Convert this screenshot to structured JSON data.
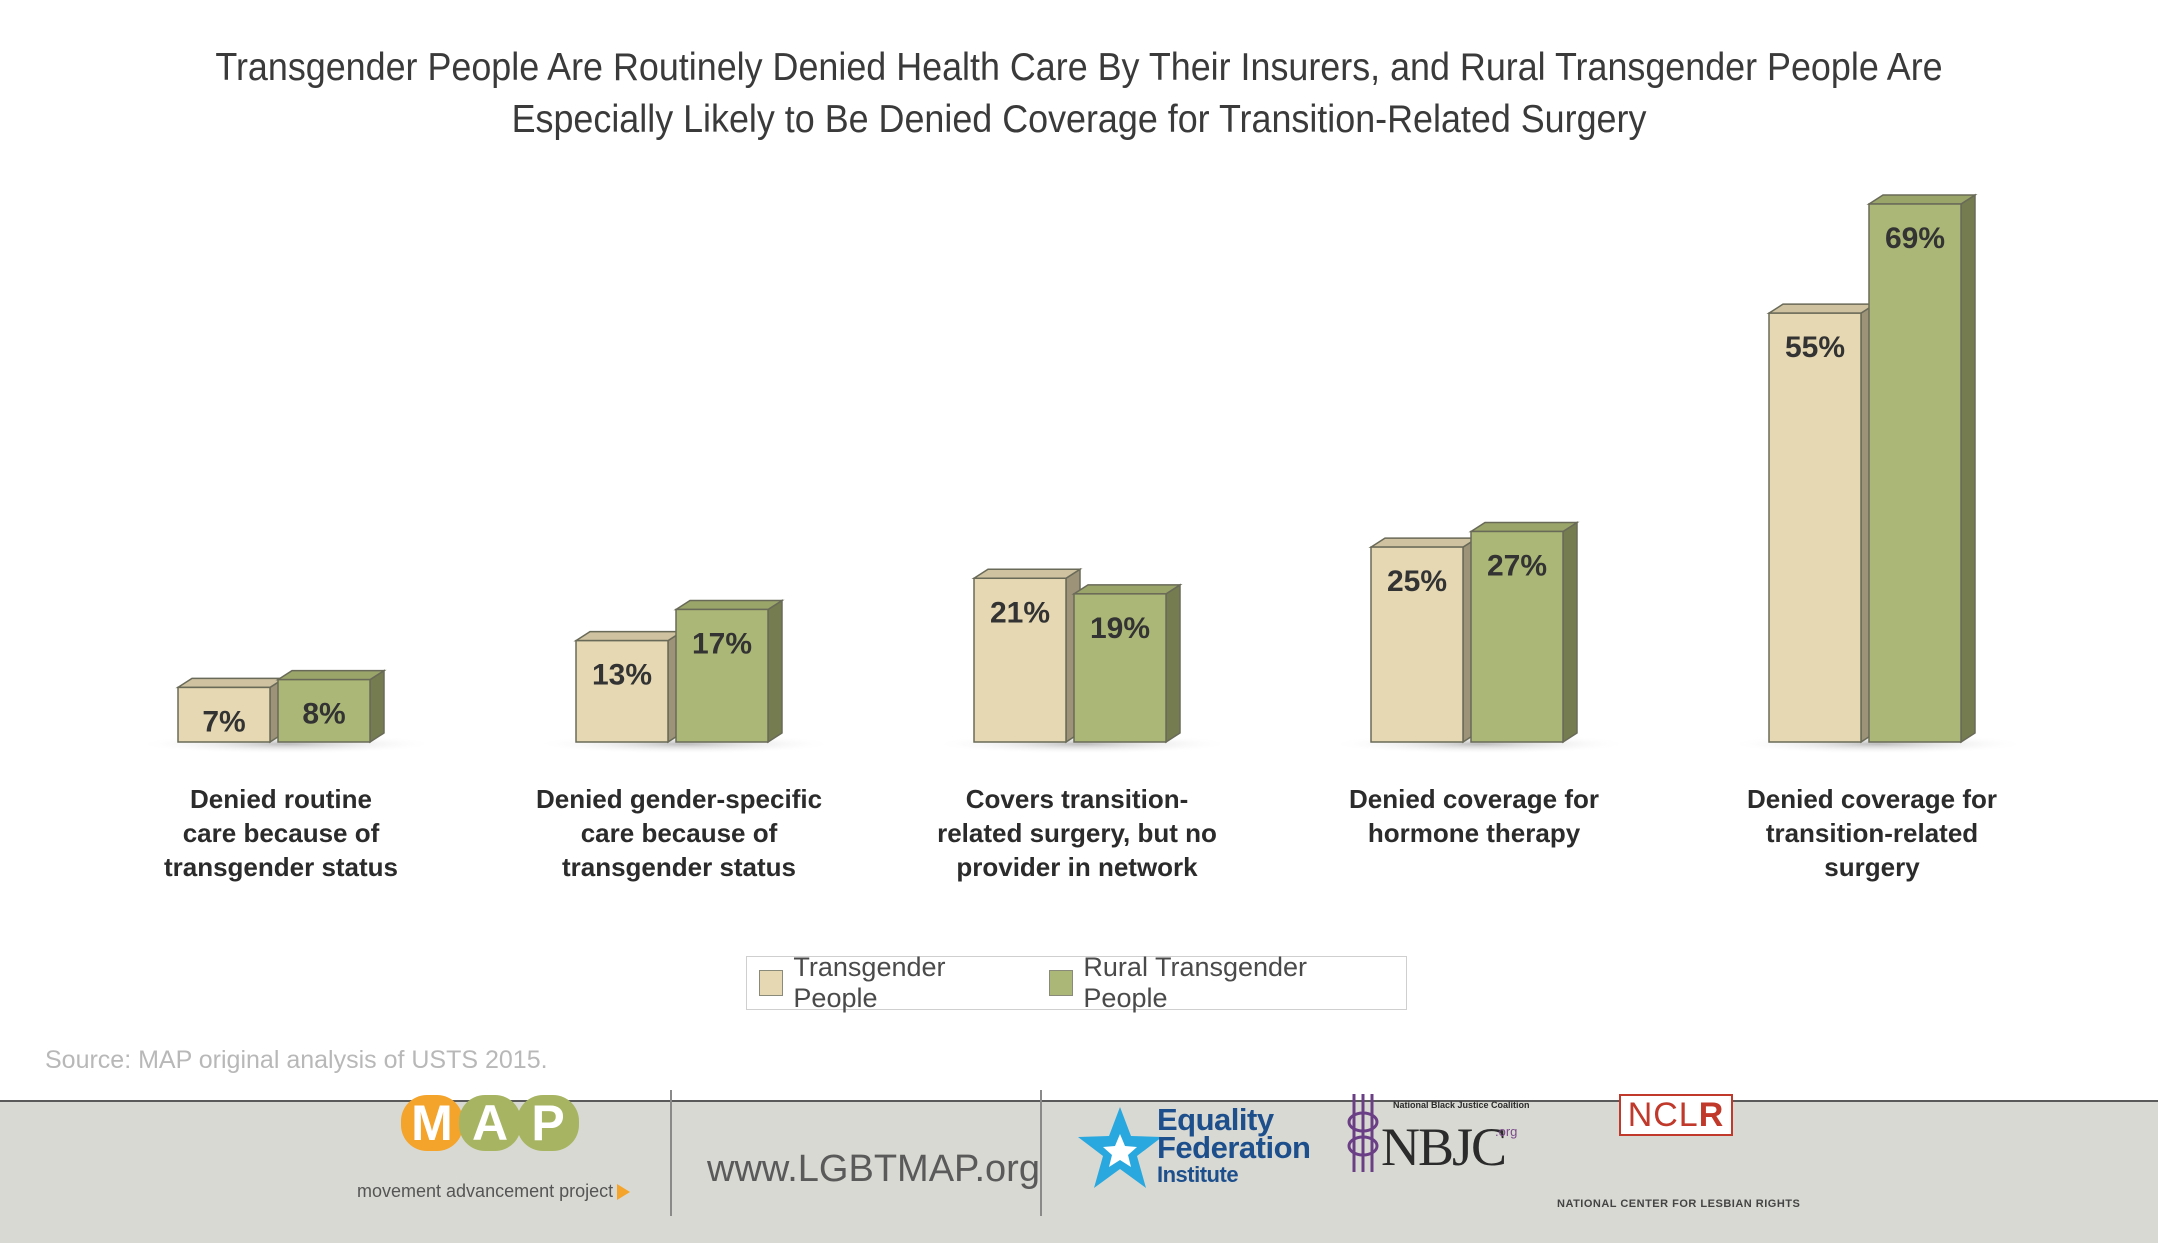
{
  "title_lines": [
    "Transgender People Are Routinely Denied Health Care By Their Insurers, and Rural Transgender People Are",
    "Especially Likely to Be Denied Coverage for Transition-Related Surgery"
  ],
  "chart_data": {
    "type": "bar",
    "categories": [
      "Denied routine care because of transgender status",
      "Denied gender-specific care because of transgender status",
      "Covers transition-related surgery, but no provider in network",
      "Denied coverage for hormone therapy",
      "Denied coverage for transition-related surgery"
    ],
    "category_labels": [
      "Denied routine\ncare because of\ntransgender status",
      "Denied gender-specific\ncare because of\ntransgender status",
      "Covers transition-\nrelated surgery, but no\nprovider in network",
      "Denied coverage for\nhormone therapy",
      "Denied coverage for\ntransition-related\nsurgery"
    ],
    "series": [
      {
        "name": "Transgender People",
        "color": "#e5d8b2",
        "values": [
          7,
          13,
          21,
          25,
          55
        ],
        "labels": [
          "7%",
          "13%",
          "21%",
          "25%",
          "55%"
        ]
      },
      {
        "name": "Rural Transgender People",
        "color": "#abb776",
        "values": [
          8,
          17,
          19,
          27,
          69
        ],
        "labels": [
          "8%",
          "17%",
          "19%",
          "27%",
          "69%"
        ]
      }
    ],
    "unit": "%",
    "ylim": [
      0,
      69
    ],
    "grid": false,
    "legend_position": "bottom"
  },
  "source": "Source: MAP original analysis of USTS 2015.",
  "footer": {
    "map_letters": [
      "M",
      "A",
      "P"
    ],
    "map_colors": [
      "#f4a42a",
      "#a7b563",
      "#a7b563"
    ],
    "map_subtitle": "movement advancement project",
    "website": "www.LGBTMAP.org",
    "efi_line1": "Equality",
    "efi_line2": "Federation",
    "efi_line3": "Institute",
    "nbjc_top": "National Black Justice Coalition",
    "nbjc_word": "NBJC",
    "nbjc_org": ".org",
    "nclr_word_a": "NCL",
    "nclr_word_b": "R",
    "nclr_sub": "NATIONAL CENTER FOR LESBIAN RIGHTS"
  }
}
